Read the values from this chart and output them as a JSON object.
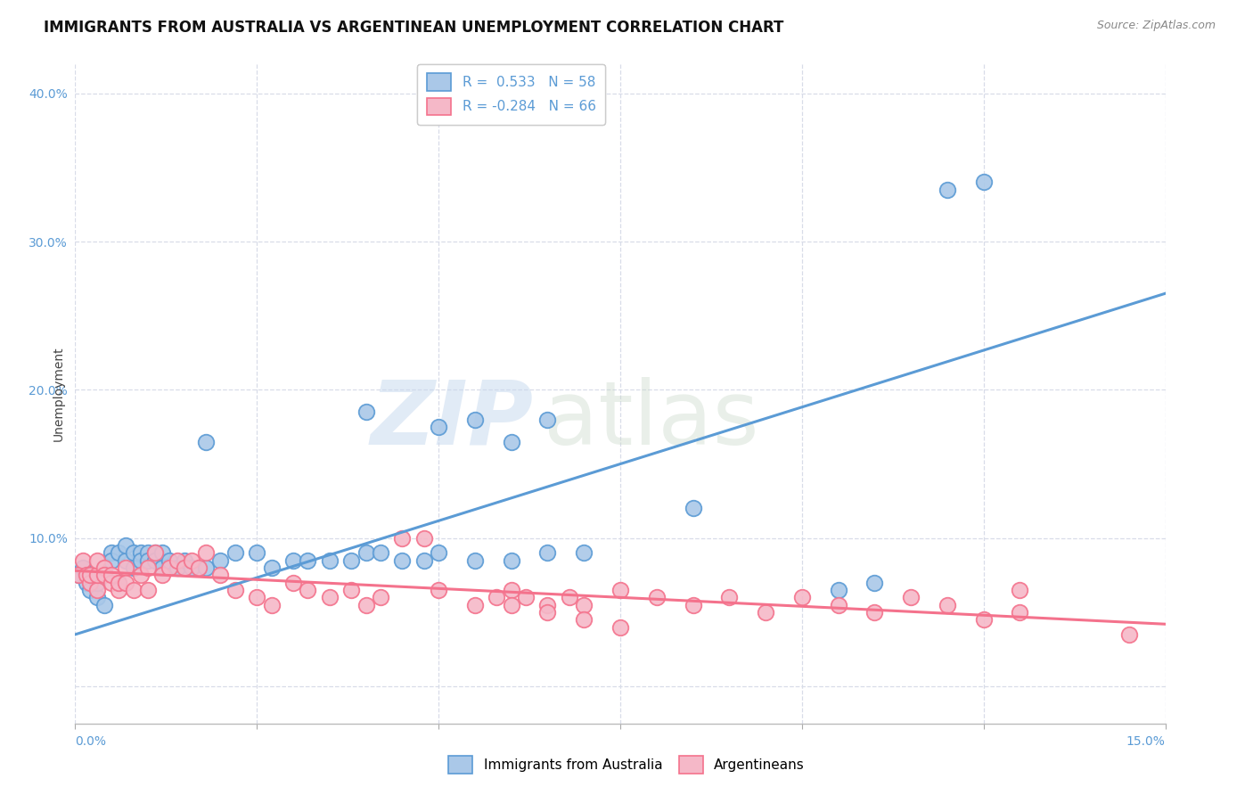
{
  "title": "IMMIGRANTS FROM AUSTRALIA VS ARGENTINEAN UNEMPLOYMENT CORRELATION CHART",
  "source": "Source: ZipAtlas.com",
  "ylabel": "Unemployment",
  "x_range": [
    0.0,
    0.15
  ],
  "y_range": [
    -0.025,
    0.42
  ],
  "y_ticks": [
    0.0,
    0.1,
    0.2,
    0.3,
    0.4
  ],
  "y_tick_labels": [
    "",
    "10.0%",
    "20.0%",
    "30.0%",
    "40.0%"
  ],
  "x_tick_positions": [
    0.0,
    0.025,
    0.05,
    0.075,
    0.1,
    0.125,
    0.15
  ],
  "legend_entries": [
    {
      "label": "R =  0.533   N = 58",
      "color": "#6aaed6"
    },
    {
      "label": "R = -0.284   N = 66",
      "color": "#f4728c"
    }
  ],
  "legend_bottom": [
    "Immigrants from Australia",
    "Argentineans"
  ],
  "blue_scatter_x": [
    0.0005,
    0.001,
    0.0015,
    0.002,
    0.002,
    0.003,
    0.003,
    0.004,
    0.004,
    0.005,
    0.005,
    0.006,
    0.006,
    0.007,
    0.007,
    0.008,
    0.008,
    0.009,
    0.009,
    0.01,
    0.01,
    0.011,
    0.011,
    0.012,
    0.012,
    0.013,
    0.014,
    0.015,
    0.016,
    0.018,
    0.02,
    0.022,
    0.025,
    0.027,
    0.03,
    0.032,
    0.035,
    0.038,
    0.04,
    0.042,
    0.045,
    0.048,
    0.05,
    0.055,
    0.06,
    0.065,
    0.07,
    0.085,
    0.018,
    0.04,
    0.05,
    0.055,
    0.06,
    0.065,
    0.105,
    0.11,
    0.12,
    0.125
  ],
  "blue_scatter_y": [
    0.075,
    0.08,
    0.07,
    0.065,
    0.075,
    0.06,
    0.07,
    0.055,
    0.08,
    0.09,
    0.085,
    0.07,
    0.09,
    0.085,
    0.095,
    0.08,
    0.09,
    0.09,
    0.085,
    0.09,
    0.085,
    0.09,
    0.085,
    0.08,
    0.09,
    0.085,
    0.08,
    0.085,
    0.08,
    0.08,
    0.085,
    0.09,
    0.09,
    0.08,
    0.085,
    0.085,
    0.085,
    0.085,
    0.09,
    0.09,
    0.085,
    0.085,
    0.09,
    0.085,
    0.085,
    0.09,
    0.09,
    0.12,
    0.165,
    0.185,
    0.175,
    0.18,
    0.165,
    0.18,
    0.065,
    0.07,
    0.335,
    0.34
  ],
  "pink_scatter_x": [
    0.0005,
    0.001,
    0.0015,
    0.002,
    0.002,
    0.003,
    0.003,
    0.003,
    0.004,
    0.004,
    0.005,
    0.005,
    0.006,
    0.006,
    0.007,
    0.007,
    0.008,
    0.009,
    0.01,
    0.01,
    0.011,
    0.012,
    0.013,
    0.014,
    0.015,
    0.016,
    0.017,
    0.018,
    0.02,
    0.022,
    0.025,
    0.027,
    0.03,
    0.032,
    0.035,
    0.038,
    0.04,
    0.042,
    0.045,
    0.048,
    0.05,
    0.055,
    0.058,
    0.06,
    0.062,
    0.065,
    0.068,
    0.07,
    0.075,
    0.08,
    0.085,
    0.09,
    0.095,
    0.1,
    0.105,
    0.11,
    0.115,
    0.12,
    0.125,
    0.13,
    0.06,
    0.065,
    0.07,
    0.075,
    0.13,
    0.145
  ],
  "pink_scatter_y": [
    0.075,
    0.085,
    0.075,
    0.07,
    0.075,
    0.065,
    0.075,
    0.085,
    0.08,
    0.075,
    0.07,
    0.075,
    0.065,
    0.07,
    0.08,
    0.07,
    0.065,
    0.075,
    0.065,
    0.08,
    0.09,
    0.075,
    0.08,
    0.085,
    0.08,
    0.085,
    0.08,
    0.09,
    0.075,
    0.065,
    0.06,
    0.055,
    0.07,
    0.065,
    0.06,
    0.065,
    0.055,
    0.06,
    0.1,
    0.1,
    0.065,
    0.055,
    0.06,
    0.065,
    0.06,
    0.055,
    0.06,
    0.055,
    0.065,
    0.06,
    0.055,
    0.06,
    0.05,
    0.06,
    0.055,
    0.05,
    0.06,
    0.055,
    0.045,
    0.05,
    0.055,
    0.05,
    0.045,
    0.04,
    0.065,
    0.035
  ],
  "blue_line_x": [
    0.0,
    0.15
  ],
  "blue_line_y": [
    0.035,
    0.265
  ],
  "pink_line_x": [
    0.0,
    0.15
  ],
  "pink_line_y": [
    0.078,
    0.042
  ],
  "blue_color": "#5b9bd5",
  "pink_color": "#f4728c",
  "blue_fill": "#aac8e8",
  "pink_fill": "#f5b8c8",
  "watermark_zip": "ZIP",
  "watermark_atlas": "atlas",
  "background_color": "#ffffff",
  "grid_color": "#d8dce8",
  "title_fontsize": 12,
  "source_fontsize": 9,
  "tick_fontsize": 10,
  "ylabel_fontsize": 10
}
